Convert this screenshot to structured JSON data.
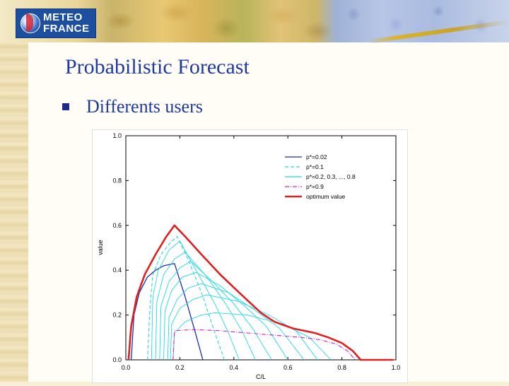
{
  "logo": {
    "line1": "METEO",
    "line2": "FRANCE"
  },
  "slide": {
    "title": "Probabilistic Forecast",
    "bullet": "Differents users"
  },
  "colors": {
    "title": "#1d3aa0",
    "optimum": "#e02020",
    "p002": "#1a2fb0",
    "cyan": "#22d8e8",
    "p09": "#d020c8"
  },
  "chart_data": {
    "type": "line",
    "xlabel": "C/L",
    "ylabel": "value",
    "xlim": [
      0,
      1
    ],
    "ylim": [
      0,
      1
    ],
    "xticks": [
      "0.0",
      "0.2",
      "0.4",
      "0.6",
      "0.8",
      "1.0"
    ],
    "yticks": [
      "0.0",
      "0.2",
      "0.4",
      "0.6",
      "0.8",
      "1.0"
    ],
    "legend_position": "top-right",
    "legend": [
      {
        "label": "p*=0.02",
        "style": "solid",
        "color": "#1a2fb0"
      },
      {
        "label": "p*=0.1",
        "style": "dashed",
        "color": "#22d8e8"
      },
      {
        "label": "p*=0.2, 0.3, ..., 0.8",
        "style": "solid",
        "color": "#22d8e8"
      },
      {
        "label": "p*=0.9",
        "style": "dashdot",
        "color": "#d020c8"
      },
      {
        "label": "optimum value",
        "style": "thick",
        "color": "#e02020"
      }
    ],
    "series": [
      {
        "name": "p*=0.02",
        "color": "#1a2fb0",
        "dash": "",
        "width": 1.3,
        "points": [
          [
            0.02,
            0
          ],
          [
            0.03,
            0.2
          ],
          [
            0.05,
            0.3
          ],
          [
            0.08,
            0.37
          ],
          [
            0.11,
            0.4
          ],
          [
            0.14,
            0.42
          ],
          [
            0.18,
            0.43
          ],
          [
            0.22,
            0.28
          ],
          [
            0.26,
            0.11
          ],
          [
            0.285,
            0
          ]
        ]
      },
      {
        "name": "p*=0.1",
        "color": "#22d8e8",
        "dash": "5,3",
        "width": 1.1,
        "points": [
          [
            0.08,
            0
          ],
          [
            0.09,
            0.25
          ],
          [
            0.1,
            0.38
          ],
          [
            0.13,
            0.47
          ],
          [
            0.17,
            0.53
          ],
          [
            0.19,
            0.55
          ],
          [
            0.23,
            0.45
          ],
          [
            0.28,
            0.3
          ],
          [
            0.33,
            0.12
          ],
          [
            0.365,
            0
          ]
        ]
      },
      {
        "name": "p*=0.2",
        "color": "#22d8e8",
        "dash": "",
        "width": 0.9,
        "points": [
          [
            0.095,
            0
          ],
          [
            0.1,
            0.28
          ],
          [
            0.12,
            0.4
          ],
          [
            0.16,
            0.49
          ],
          [
            0.2,
            0.53
          ],
          [
            0.26,
            0.4
          ],
          [
            0.33,
            0.25
          ],
          [
            0.38,
            0.12
          ],
          [
            0.42,
            0
          ]
        ]
      },
      {
        "name": "p*=0.3",
        "color": "#22d8e8",
        "dash": "",
        "width": 0.9,
        "points": [
          [
            0.11,
            0
          ],
          [
            0.115,
            0.26
          ],
          [
            0.14,
            0.38
          ],
          [
            0.18,
            0.45
          ],
          [
            0.22,
            0.48
          ],
          [
            0.3,
            0.37
          ],
          [
            0.37,
            0.25
          ],
          [
            0.43,
            0.13
          ],
          [
            0.48,
            0
          ]
        ]
      },
      {
        "name": "p*=0.4",
        "color": "#22d8e8",
        "dash": "",
        "width": 0.9,
        "points": [
          [
            0.125,
            0
          ],
          [
            0.13,
            0.24
          ],
          [
            0.16,
            0.35
          ],
          [
            0.2,
            0.41
          ],
          [
            0.24,
            0.44
          ],
          [
            0.32,
            0.35
          ],
          [
            0.4,
            0.25
          ],
          [
            0.47,
            0.14
          ],
          [
            0.54,
            0
          ]
        ]
      },
      {
        "name": "p*=0.5",
        "color": "#22d8e8",
        "dash": "",
        "width": 0.9,
        "points": [
          [
            0.14,
            0
          ],
          [
            0.145,
            0.22
          ],
          [
            0.17,
            0.31
          ],
          [
            0.21,
            0.37
          ],
          [
            0.26,
            0.39
          ],
          [
            0.35,
            0.33
          ],
          [
            0.44,
            0.24
          ],
          [
            0.52,
            0.15
          ],
          [
            0.6,
            0
          ]
        ]
      },
      {
        "name": "p*=0.6",
        "color": "#22d8e8",
        "dash": "",
        "width": 0.9,
        "points": [
          [
            0.155,
            0
          ],
          [
            0.16,
            0.19
          ],
          [
            0.19,
            0.27
          ],
          [
            0.23,
            0.32
          ],
          [
            0.28,
            0.34
          ],
          [
            0.38,
            0.3
          ],
          [
            0.48,
            0.22
          ],
          [
            0.57,
            0.14
          ],
          [
            0.66,
            0
          ]
        ]
      },
      {
        "name": "p*=0.7",
        "color": "#22d8e8",
        "dash": "",
        "width": 0.9,
        "points": [
          [
            0.165,
            0
          ],
          [
            0.17,
            0.16
          ],
          [
            0.2,
            0.23
          ],
          [
            0.25,
            0.27
          ],
          [
            0.3,
            0.29
          ],
          [
            0.42,
            0.26
          ],
          [
            0.53,
            0.2
          ],
          [
            0.63,
            0.13
          ],
          [
            0.71,
            0
          ]
        ]
      },
      {
        "name": "p*=0.8",
        "color": "#22d8e8",
        "dash": "",
        "width": 0.9,
        "points": [
          [
            0.175,
            0
          ],
          [
            0.18,
            0.12
          ],
          [
            0.22,
            0.17
          ],
          [
            0.28,
            0.2
          ],
          [
            0.33,
            0.21
          ],
          [
            0.45,
            0.2
          ],
          [
            0.58,
            0.16
          ],
          [
            0.68,
            0.1
          ],
          [
            0.76,
            0
          ]
        ]
      },
      {
        "name": "p*=0.9",
        "color": "#d020c8",
        "dash": "6,2,1,2",
        "width": 1.1,
        "points": [
          [
            0.175,
            0
          ],
          [
            0.18,
            0.13
          ],
          [
            0.25,
            0.135
          ],
          [
            0.35,
            0.13
          ],
          [
            0.45,
            0.12
          ],
          [
            0.55,
            0.11
          ],
          [
            0.65,
            0.1
          ],
          [
            0.72,
            0.09
          ],
          [
            0.78,
            0.07
          ],
          [
            0.82,
            0.04
          ],
          [
            0.85,
            0
          ]
        ]
      },
      {
        "name": "optimum value",
        "color": "#e02020",
        "dash": "",
        "width": 2.6,
        "points": [
          [
            0.01,
            0
          ],
          [
            0.02,
            0.15
          ],
          [
            0.04,
            0.28
          ],
          [
            0.07,
            0.38
          ],
          [
            0.11,
            0.47
          ],
          [
            0.15,
            0.55
          ],
          [
            0.18,
            0.6
          ],
          [
            0.22,
            0.55
          ],
          [
            0.28,
            0.47
          ],
          [
            0.35,
            0.38
          ],
          [
            0.42,
            0.3
          ],
          [
            0.5,
            0.21
          ],
          [
            0.55,
            0.17
          ],
          [
            0.62,
            0.14
          ],
          [
            0.7,
            0.12
          ],
          [
            0.75,
            0.1
          ],
          [
            0.8,
            0.075
          ],
          [
            0.84,
            0.04
          ],
          [
            0.87,
            0
          ],
          [
            0.99,
            0
          ]
        ]
      }
    ]
  }
}
